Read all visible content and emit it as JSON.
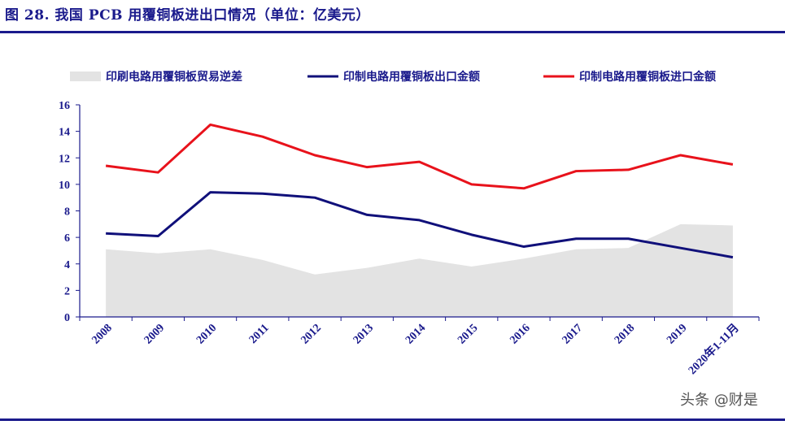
{
  "title": "图 28. 我国 PCB 用覆铜板进出口情况（单位：亿美元）",
  "watermark": "头条 @财是",
  "colors": {
    "title": "#1a1a8c",
    "surplus_area": "#e3e3e3",
    "export_line": "#10107a",
    "import_line": "#e8121b"
  },
  "chart_data": {
    "type": "line",
    "categories": [
      "2008",
      "2009",
      "2010",
      "2011",
      "2012",
      "2013",
      "2014",
      "2015",
      "2016",
      "2017",
      "2018",
      "2019",
      "2020年1-11月"
    ],
    "ylim": [
      0,
      16
    ],
    "yticks": [
      0,
      2,
      4,
      6,
      8,
      10,
      12,
      14,
      16
    ],
    "grid": false,
    "legend_placement": "top",
    "series": [
      {
        "name": "印刷电路用覆铜板贸易逆差",
        "kind": "area",
        "values": [
          5.1,
          4.8,
          5.1,
          4.3,
          3.2,
          3.7,
          4.4,
          3.8,
          4.4,
          5.1,
          5.2,
          7.0,
          6.9
        ]
      },
      {
        "name": "印制电路用覆铜板出口金额",
        "kind": "line",
        "values": [
          6.3,
          6.1,
          9.4,
          9.3,
          9.0,
          7.7,
          7.3,
          6.2,
          5.3,
          5.9,
          5.9,
          5.2,
          4.5
        ]
      },
      {
        "name": "印制电路用覆铜板进口金额",
        "kind": "line",
        "values": [
          11.4,
          10.9,
          14.5,
          13.6,
          12.2,
          11.3,
          11.7,
          10.0,
          9.7,
          11.0,
          11.1,
          12.2,
          11.5
        ]
      }
    ]
  }
}
